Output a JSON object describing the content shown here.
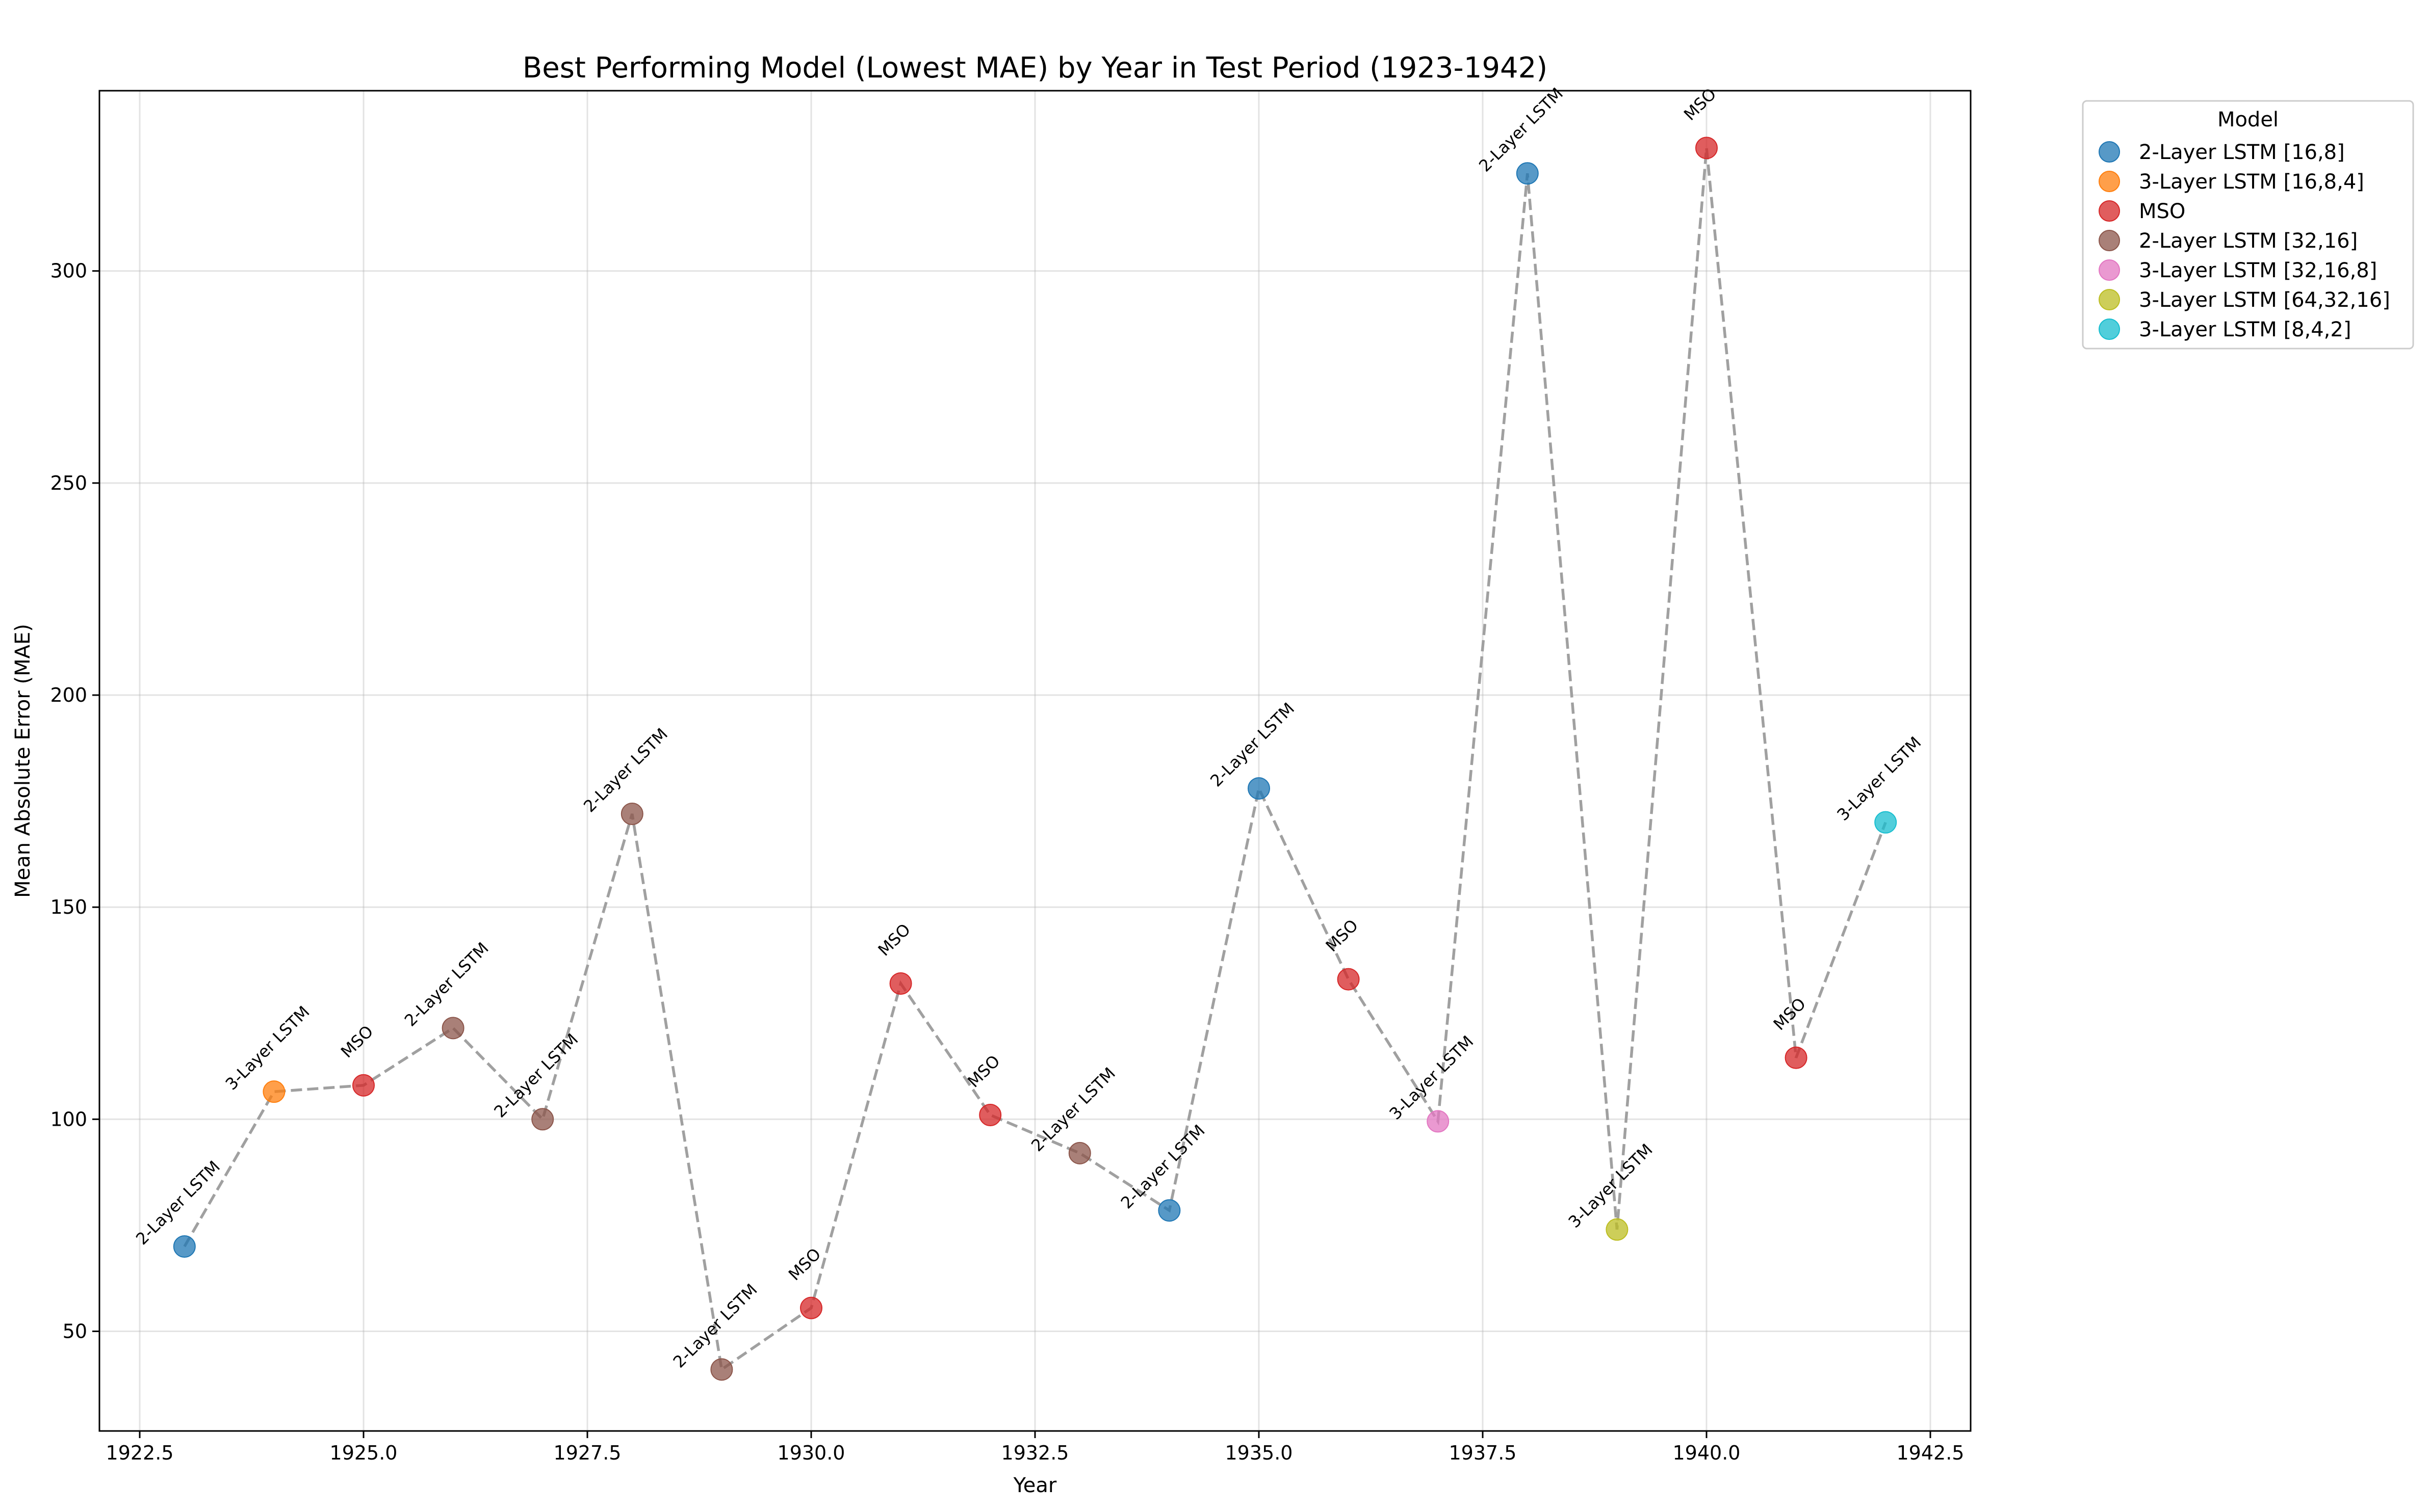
{
  "chart_data": {
    "type": "scatter",
    "title": "Best Performing Model (Lowest MAE) by Year in Test Period (1923-1942)",
    "xlabel": "Year",
    "ylabel": "Mean Absolute Error (MAE)",
    "xlim": [
      1922.05,
      1942.95
    ],
    "ylim": [
      26.5,
      342.5
    ],
    "xticks": [
      1922.5,
      1925.0,
      1927.5,
      1930.0,
      1932.5,
      1935.0,
      1937.5,
      1940.0,
      1942.5
    ],
    "xtick_labels": [
      "1922.5",
      "1925.0",
      "1927.5",
      "1930.0",
      "1932.5",
      "1935.0",
      "1937.5",
      "1940.0",
      "1942.5"
    ],
    "yticks": [
      50,
      100,
      150,
      200,
      250,
      300
    ],
    "ytick_labels": [
      "50",
      "100",
      "150",
      "200",
      "250",
      "300"
    ],
    "grid": true,
    "connector_line": {
      "style": "dashed",
      "color": "#a0a0a0"
    },
    "legend": {
      "title": "Model",
      "placement": "outside-top-right",
      "entries": [
        {
          "name": "2-Layer LSTM [16,8]",
          "color": "#1f77b4"
        },
        {
          "name": "3-Layer LSTM [16,8,4]",
          "color": "#ff7f0e"
        },
        {
          "name": "MSO",
          "color": "#d62728"
        },
        {
          "name": "2-Layer LSTM [32,16]",
          "color": "#8c564b"
        },
        {
          "name": "3-Layer LSTM [32,16,8]",
          "color": "#e377c2"
        },
        {
          "name": "3-Layer LSTM [64,32,16]",
          "color": "#bcbd22"
        },
        {
          "name": "3-Layer LSTM [8,4,2]",
          "color": "#17becf"
        }
      ]
    },
    "points": [
      {
        "x": 1923,
        "y": 70,
        "model": 0,
        "label": "2-Layer LSTM"
      },
      {
        "x": 1924,
        "y": 106.5,
        "model": 1,
        "label": "3-Layer LSTM"
      },
      {
        "x": 1925,
        "y": 108,
        "model": 2,
        "label": "MSO"
      },
      {
        "x": 1926,
        "y": 121.5,
        "model": 3,
        "label": "2-Layer LSTM"
      },
      {
        "x": 1927,
        "y": 100,
        "model": 3,
        "label": "2-Layer LSTM"
      },
      {
        "x": 1928,
        "y": 172,
        "model": 3,
        "label": "2-Layer LSTM"
      },
      {
        "x": 1929,
        "y": 41,
        "model": 3,
        "label": "2-Layer LSTM"
      },
      {
        "x": 1930,
        "y": 55.5,
        "model": 2,
        "label": "MSO"
      },
      {
        "x": 1931,
        "y": 132,
        "model": 2,
        "label": "MSO"
      },
      {
        "x": 1932,
        "y": 101,
        "model": 2,
        "label": "MSO"
      },
      {
        "x": 1933,
        "y": 92,
        "model": 3,
        "label": "2-Layer LSTM"
      },
      {
        "x": 1934,
        "y": 78.5,
        "model": 0,
        "label": "2-Layer LSTM"
      },
      {
        "x": 1935,
        "y": 178,
        "model": 0,
        "label": "2-Layer LSTM"
      },
      {
        "x": 1936,
        "y": 133,
        "model": 2,
        "label": "MSO"
      },
      {
        "x": 1937,
        "y": 99.5,
        "model": 4,
        "label": "3-Layer LSTM"
      },
      {
        "x": 1938,
        "y": 323,
        "model": 0,
        "label": "2-Layer LSTM"
      },
      {
        "x": 1939,
        "y": 74,
        "model": 5,
        "label": "3-Layer LSTM"
      },
      {
        "x": 1940,
        "y": 329,
        "model": 2,
        "label": "MSO"
      },
      {
        "x": 1941,
        "y": 114.5,
        "model": 2,
        "label": "MSO"
      },
      {
        "x": 1942,
        "y": 170,
        "model": 6,
        "label": "3-Layer LSTM"
      }
    ]
  }
}
